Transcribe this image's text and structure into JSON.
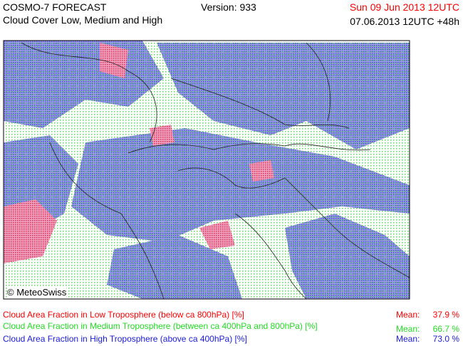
{
  "header": {
    "title": "COSMO-7 FORECAST",
    "subtitle": "Cloud Cover Low, Medium and High",
    "version": "Version: 933",
    "valid_time": "Sun 09 Jun 2013 12UTC",
    "run_time": "07.06.2013 12UTC +48h"
  },
  "map": {
    "credit": "© MeteoSwiss"
  },
  "legend": {
    "rows": [
      {
        "label": "Cloud Area Fraction in Low Troposphere (below ca 800hPa) [%]",
        "color": "#ff0000",
        "mean_label": "Mean:",
        "mean": "37.9 %"
      },
      {
        "label": "Cloud Area Fraction in Medium Troposphere (between ca 400hPa and 800hPa) [%]",
        "color": "#22dd22",
        "mean_label": "Mean:",
        "mean": "66.7 %"
      },
      {
        "label": "Cloud Area Fraction in High Troposphere (above ca 400hPa) [%]",
        "color": "#1a1adf",
        "mean_label": "Mean:",
        "mean": "73.0 %"
      }
    ]
  }
}
